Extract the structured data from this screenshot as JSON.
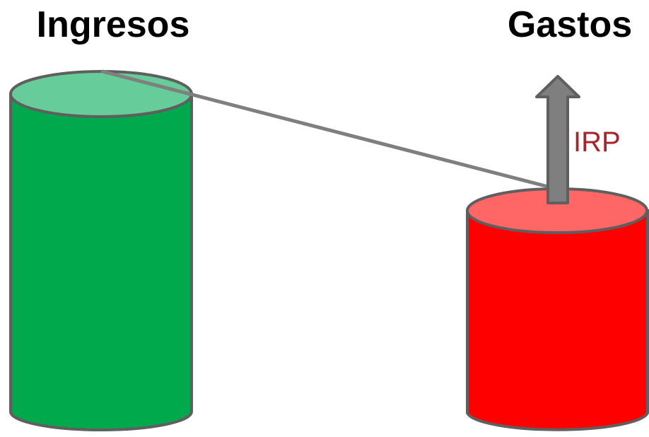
{
  "left_title": "Ingresos",
  "right_title": "Gastos",
  "arrow_label": "IRP",
  "colors": {
    "ingresos_body": "#00AA4C",
    "ingresos_top": "#66CC99",
    "gastos_body": "#FF0000",
    "gastos_top": "#FF6666",
    "outline": "#5F5F5F",
    "arrow": "#7F7F7F",
    "arrow_label": "#A6262B",
    "connector": "#7F7F7F"
  }
}
